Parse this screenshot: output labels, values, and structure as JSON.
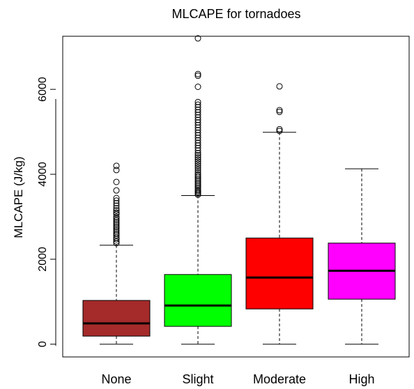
{
  "chart_data": {
    "type": "boxplot",
    "title": "MLCAPE for tornadoes",
    "xlabel": "",
    "ylabel": "MLCAPE (J/kg)",
    "ylim": [
      -300,
      7250
    ],
    "yticks": [
      0,
      2000,
      4000,
      6000
    ],
    "categories": [
      "None",
      "Slight",
      "Moderate",
      "High"
    ],
    "colors": [
      "#a52a2a",
      "#00ff00",
      "#ff0000",
      "#ff00ff"
    ],
    "series": [
      {
        "name": "None",
        "whisker_low": 0,
        "q1": 190,
        "median": 490,
        "q3": 1030,
        "whisker_high": 2330,
        "outliers": [
          2380,
          2420,
          2470,
          2510,
          2560,
          2600,
          2640,
          2680,
          2720,
          2760,
          2800,
          2840,
          2880,
          2920,
          2960,
          3000,
          3060,
          3100,
          3150,
          3200,
          3260,
          3320,
          3380,
          3440,
          3620,
          3820,
          4100,
          4200
        ]
      },
      {
        "name": "Slight",
        "whisker_low": 0,
        "q1": 420,
        "median": 910,
        "q3": 1640,
        "whisker_high": 3500,
        "outliers": [
          3520,
          3550,
          3580,
          3610,
          3640,
          3680,
          3720,
          3760,
          3800,
          3840,
          3880,
          3920,
          3960,
          4000,
          4050,
          4100,
          4150,
          4200,
          4250,
          4300,
          4350,
          4400,
          4450,
          4500,
          4560,
          4620,
          4680,
          4740,
          4800,
          4860,
          4920,
          4980,
          5040,
          5100,
          5160,
          5220,
          5280,
          5340,
          5400,
          5460,
          5520,
          5580,
          5640,
          5700,
          6060,
          6320,
          6360,
          7200
        ]
      },
      {
        "name": "Moderate",
        "whisker_low": 0,
        "q1": 830,
        "median": 1570,
        "q3": 2500,
        "whisker_high": 4990,
        "outliers": [
          5020,
          5060,
          5470,
          5510,
          6070
        ]
      },
      {
        "name": "High",
        "whisker_low": 0,
        "q1": 1060,
        "median": 1730,
        "q3": 2380,
        "whisker_high": 4130,
        "outliers": []
      }
    ]
  }
}
